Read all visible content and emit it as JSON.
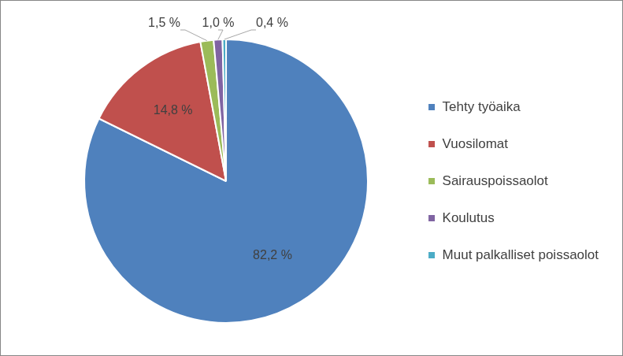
{
  "chart_data": {
    "type": "pie",
    "categories": [
      "Tehty työaika",
      "Vuosilomat",
      "Sairauspoissaolot",
      "Koulutus",
      "Muut palkalliset poissaolot"
    ],
    "values": [
      82.2,
      14.8,
      1.5,
      1.0,
      0.4
    ],
    "value_labels": [
      "82,2 %",
      "14,8 %",
      "1,5 %",
      "1,0 %",
      "0,4 %"
    ],
    "colors": [
      "#4f81bd",
      "#c0504d",
      "#9bbb59",
      "#8064a2",
      "#4bacc6"
    ],
    "data_labels": true,
    "legend": "right"
  }
}
